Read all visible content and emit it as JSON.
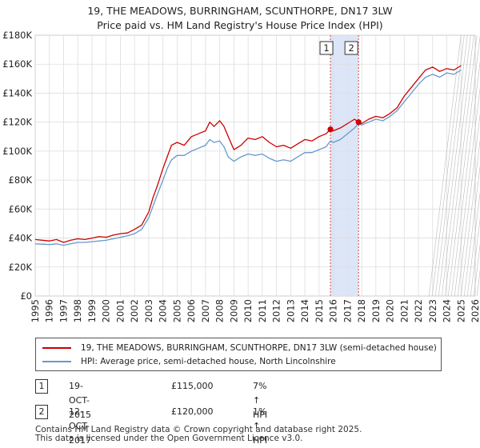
{
  "header": {
    "title": "19, THE MEADOWS, BURRINGHAM, SCUNTHORPE, DN17 3LW",
    "subtitle": "Price paid vs. HM Land Registry's House Price Index (HPI)"
  },
  "legend": {
    "property_label": "19, THE MEADOWS, BURRINGHAM, SCUNTHORPE, DN17 3LW (semi-detached house)",
    "hpi_label": "HPI: Average price, semi-detached house, North Lincolnshire"
  },
  "transactions": [
    {
      "num": "1",
      "date": "19-OCT-2015",
      "price": "£115,000",
      "hpi": "7% ↑ HPI"
    },
    {
      "num": "2",
      "date": "12-OCT-2017",
      "price": "£120,000",
      "hpi": "1% ↑ HPI"
    }
  ],
  "footer": {
    "line1": "Contains HM Land Registry data © Crown copyright and database right 2025.",
    "line2": "This data is licensed under the Open Government Licence v3.0."
  },
  "colors": {
    "property": "#cc0000",
    "hpi": "#6699cc",
    "shade": "#dde6f7",
    "vline": "#dd4444",
    "grid": "#dddddd"
  },
  "chart_data": {
    "type": "line",
    "xlim": [
      1995,
      2026
    ],
    "ylim": [
      0,
      180000
    ],
    "x_ticks": [
      "1995",
      "1996",
      "1997",
      "1998",
      "1999",
      "2000",
      "2001",
      "2002",
      "2003",
      "2004",
      "2005",
      "2006",
      "2007",
      "2008",
      "2009",
      "2010",
      "2011",
      "2012",
      "2013",
      "2014",
      "2015",
      "2016",
      "2017",
      "2018",
      "2019",
      "2020",
      "2021",
      "2022",
      "2023",
      "2024",
      "2025",
      "2026"
    ],
    "y_ticks": [
      {
        "value": 0,
        "label": "£0"
      },
      {
        "value": 20000,
        "label": "£20K"
      },
      {
        "value": 40000,
        "label": "£40K"
      },
      {
        "value": 60000,
        "label": "£60K"
      },
      {
        "value": 80000,
        "label": "£80K"
      },
      {
        "value": 100000,
        "label": "£100K"
      },
      {
        "value": 120000,
        "label": "£120K"
      },
      {
        "value": 140000,
        "label": "£140K"
      },
      {
        "value": 160000,
        "label": "£160K"
      },
      {
        "value": 180000,
        "label": "£180K"
      }
    ],
    "shaded_range": [
      2015.8,
      2017.78
    ],
    "future_from": 2025.0,
    "markers": [
      {
        "label": "1",
        "x": 2015.8,
        "y": 115000
      },
      {
        "label": "2",
        "x": 2017.78,
        "y": 120000
      }
    ],
    "series": [
      {
        "name": "19, THE MEADOWS, BURRINGHAM, SCUNTHORPE, DN17 3LW (semi-detached house)",
        "color_key": "property",
        "x": [
          1995,
          1995.5,
          1996,
          1996.5,
          1997,
          1997.5,
          1998,
          1998.5,
          1999,
          1999.5,
          2000,
          2000.5,
          2001,
          2001.5,
          2002,
          2002.5,
          2003,
          2003.3,
          2003.6,
          2004,
          2004.3,
          2004.6,
          2005,
          2005.5,
          2006,
          2006.5,
          2007,
          2007.3,
          2007.6,
          2008,
          2008.3,
          2008.6,
          2009,
          2009.5,
          2010,
          2010.5,
          2011,
          2011.5,
          2012,
          2012.5,
          2013,
          2013.5,
          2014,
          2014.5,
          2015,
          2015.5,
          2015.8,
          2016,
          2016.5,
          2017,
          2017.5,
          2017.78,
          2018,
          2018.5,
          2019,
          2019.5,
          2020,
          2020.5,
          2021,
          2021.5,
          2022,
          2022.5,
          2023,
          2023.5,
          2024,
          2024.5,
          2025
        ],
        "y": [
          39000,
          38500,
          38000,
          39000,
          37000,
          38500,
          39500,
          39000,
          40000,
          41000,
          40500,
          42000,
          43000,
          43500,
          46000,
          49000,
          58000,
          68000,
          76000,
          88000,
          96000,
          104000,
          106000,
          104000,
          110000,
          112000,
          114000,
          120000,
          117000,
          121000,
          117000,
          110000,
          101000,
          104000,
          109000,
          108000,
          110000,
          106000,
          103000,
          104000,
          102000,
          105000,
          108000,
          107000,
          110000,
          112000,
          115000,
          114000,
          116000,
          119000,
          122000,
          120000,
          119000,
          122000,
          124000,
          123000,
          126000,
          130000,
          138000,
          144000,
          150000,
          156000,
          158000,
          155000,
          157000,
          156000,
          159000
        ]
      },
      {
        "name": "HPI: Average price, semi-detached house, North Lincolnshire",
        "color_key": "hpi",
        "x": [
          1995,
          1995.5,
          1996,
          1996.5,
          1997,
          1997.5,
          1998,
          1998.5,
          1999,
          1999.5,
          2000,
          2000.5,
          2001,
          2001.5,
          2002,
          2002.5,
          2003,
          2003.3,
          2003.6,
          2004,
          2004.3,
          2004.6,
          2005,
          2005.5,
          2006,
          2006.5,
          2007,
          2007.3,
          2007.6,
          2008,
          2008.3,
          2008.6,
          2009,
          2009.5,
          2010,
          2010.5,
          2011,
          2011.5,
          2012,
          2012.5,
          2013,
          2013.5,
          2014,
          2014.5,
          2015,
          2015.5,
          2015.8,
          2016,
          2016.5,
          2017,
          2017.5,
          2017.78,
          2018,
          2018.5,
          2019,
          2019.5,
          2020,
          2020.5,
          2021,
          2021.5,
          2022,
          2022.5,
          2023,
          2023.5,
          2024,
          2024.5,
          2025
        ],
        "y": [
          36000,
          35800,
          35500,
          36000,
          35000,
          36000,
          37000,
          37000,
          37500,
          38000,
          38500,
          39500,
          40500,
          41500,
          43000,
          46000,
          54000,
          62000,
          70000,
          80000,
          88000,
          94000,
          97000,
          97000,
          100000,
          102000,
          104000,
          108000,
          106000,
          107000,
          103000,
          96000,
          93000,
          96000,
          98000,
          97000,
          98000,
          95000,
          93000,
          94000,
          93000,
          96000,
          99000,
          99000,
          101000,
          103000,
          107000,
          106000,
          108000,
          112000,
          116000,
          119000,
          118000,
          120000,
          122000,
          121000,
          124000,
          128000,
          134000,
          140000,
          146000,
          151000,
          153000,
          151000,
          154000,
          153000,
          156000
        ]
      }
    ]
  }
}
